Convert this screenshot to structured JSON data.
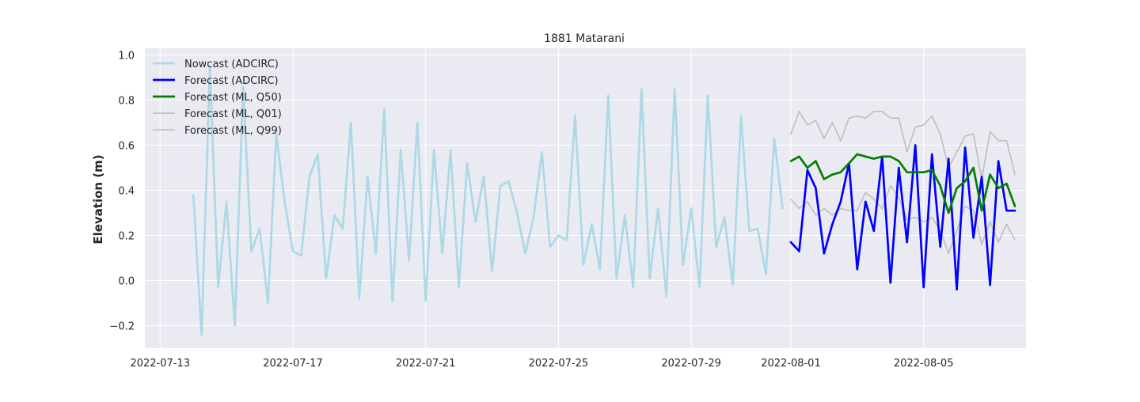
{
  "chart_data": {
    "type": "line",
    "title": "1881 Matarani",
    "xlabel": "",
    "ylabel": "Elevation (m)",
    "x_unit": "datetime",
    "xlim": [
      "2022-07-12T13:00",
      "2022-08-08T02:00"
    ],
    "ylim": [
      -0.3,
      1.03
    ],
    "yticks": [
      -0.2,
      0.0,
      0.2,
      0.4,
      0.6,
      0.8,
      1.0
    ],
    "ytick_labels": [
      "−0.2",
      "0.0",
      "0.2",
      "0.4",
      "0.6",
      "0.8",
      "1.0"
    ],
    "xticks": [
      "2022-07-13",
      "2022-07-17",
      "2022-07-21",
      "2022-07-25",
      "2022-07-29",
      "2022-08-01",
      "2022-08-05"
    ],
    "grid": true,
    "legend_position": "upper-left",
    "background": "#eaeaf2",
    "series": [
      {
        "name": "Nowcast (ADCIRC)",
        "color": "#add8e6",
        "line_width": "thick",
        "x": [
          "2022-07-14T00:00",
          "2022-07-14T06:00",
          "2022-07-14T12:00",
          "2022-07-14T18:00",
          "2022-07-15T00:00",
          "2022-07-15T06:00",
          "2022-07-15T12:00",
          "2022-07-15T18:00",
          "2022-07-16T00:00",
          "2022-07-16T06:00",
          "2022-07-16T12:00",
          "2022-07-16T18:00",
          "2022-07-17T00:00",
          "2022-07-17T06:00",
          "2022-07-17T12:00",
          "2022-07-17T18:00",
          "2022-07-18T00:00",
          "2022-07-18T06:00",
          "2022-07-18T12:00",
          "2022-07-18T18:00",
          "2022-07-19T00:00",
          "2022-07-19T06:00",
          "2022-07-19T12:00",
          "2022-07-19T18:00",
          "2022-07-20T00:00",
          "2022-07-20T06:00",
          "2022-07-20T12:00",
          "2022-07-20T18:00",
          "2022-07-21T00:00",
          "2022-07-21T06:00",
          "2022-07-21T12:00",
          "2022-07-21T18:00",
          "2022-07-22T00:00",
          "2022-07-22T06:00",
          "2022-07-22T12:00",
          "2022-07-22T18:00",
          "2022-07-23T00:00",
          "2022-07-23T06:00",
          "2022-07-23T12:00",
          "2022-07-23T18:00",
          "2022-07-24T00:00",
          "2022-07-24T06:00",
          "2022-07-24T12:00",
          "2022-07-24T18:00",
          "2022-07-25T00:00",
          "2022-07-25T06:00",
          "2022-07-25T12:00",
          "2022-07-25T18:00",
          "2022-07-26T00:00",
          "2022-07-26T06:00",
          "2022-07-26T12:00",
          "2022-07-26T18:00",
          "2022-07-27T00:00",
          "2022-07-27T06:00",
          "2022-07-27T12:00",
          "2022-07-27T18:00",
          "2022-07-28T00:00",
          "2022-07-28T06:00",
          "2022-07-28T12:00",
          "2022-07-28T18:00",
          "2022-07-29T00:00",
          "2022-07-29T06:00",
          "2022-07-29T12:00",
          "2022-07-29T18:00",
          "2022-07-30T00:00",
          "2022-07-30T06:00",
          "2022-07-30T12:00",
          "2022-07-30T18:00",
          "2022-07-31T00:00",
          "2022-07-31T06:00",
          "2022-07-31T12:00",
          "2022-07-31T18:00"
        ],
        "y": [
          0.38,
          -0.24,
          0.95,
          -0.03,
          0.35,
          -0.2,
          0.86,
          0.13,
          0.23,
          -0.1,
          0.65,
          0.35,
          0.13,
          0.11,
          0.46,
          0.56,
          0.01,
          0.29,
          0.23,
          0.7,
          -0.08,
          0.46,
          0.12,
          0.76,
          -0.09,
          0.58,
          0.09,
          0.7,
          -0.09,
          0.58,
          0.12,
          0.58,
          -0.03,
          0.52,
          0.26,
          0.46,
          0.04,
          0.42,
          0.44,
          0.3,
          0.12,
          0.28,
          0.57,
          0.15,
          0.2,
          0.18,
          0.73,
          0.07,
          0.25,
          0.05,
          0.82,
          0.01,
          0.29,
          -0.03,
          0.85,
          0.01,
          0.32,
          -0.07,
          0.85,
          0.07,
          0.32,
          -0.03,
          0.82,
          0.15,
          0.28,
          -0.02,
          0.73,
          0.22,
          0.23,
          0.03,
          0.63,
          0.32
        ]
      },
      {
        "name": "Forecast (ADCIRC)",
        "color": "#0000ff",
        "line_width": "thick",
        "x": [
          "2022-08-01T00:00",
          "2022-08-01T06:00",
          "2022-08-01T12:00",
          "2022-08-01T18:00",
          "2022-08-02T00:00",
          "2022-08-02T06:00",
          "2022-08-02T12:00",
          "2022-08-02T18:00",
          "2022-08-03T00:00",
          "2022-08-03T06:00",
          "2022-08-03T12:00",
          "2022-08-03T18:00",
          "2022-08-04T00:00",
          "2022-08-04T06:00",
          "2022-08-04T12:00",
          "2022-08-04T18:00",
          "2022-08-05T00:00",
          "2022-08-05T06:00",
          "2022-08-05T12:00",
          "2022-08-05T18:00",
          "2022-08-06T00:00",
          "2022-08-06T06:00",
          "2022-08-06T12:00",
          "2022-08-06T18:00",
          "2022-08-07T00:00",
          "2022-08-07T06:00",
          "2022-08-07T12:00",
          "2022-08-07T18:00"
        ],
        "y": [
          0.17,
          0.13,
          0.49,
          0.41,
          0.12,
          0.25,
          0.35,
          0.52,
          0.05,
          0.35,
          0.22,
          0.55,
          -0.01,
          0.5,
          0.17,
          0.6,
          -0.03,
          0.56,
          0.15,
          0.54,
          -0.04,
          0.59,
          0.19,
          0.46,
          -0.02,
          0.53,
          0.31,
          0.31
        ]
      },
      {
        "name": "Forecast (ML, Q50)",
        "color": "#008000",
        "line_width": "thick",
        "x": [
          "2022-08-01T00:00",
          "2022-08-01T06:00",
          "2022-08-01T12:00",
          "2022-08-01T18:00",
          "2022-08-02T00:00",
          "2022-08-02T06:00",
          "2022-08-02T12:00",
          "2022-08-02T18:00",
          "2022-08-03T00:00",
          "2022-08-03T06:00",
          "2022-08-03T12:00",
          "2022-08-03T18:00",
          "2022-08-04T00:00",
          "2022-08-04T06:00",
          "2022-08-04T12:00",
          "2022-08-04T18:00",
          "2022-08-05T00:00",
          "2022-08-05T06:00",
          "2022-08-05T12:00",
          "2022-08-05T18:00",
          "2022-08-06T00:00",
          "2022-08-06T06:00",
          "2022-08-06T12:00",
          "2022-08-06T18:00",
          "2022-08-07T00:00",
          "2022-08-07T06:00",
          "2022-08-07T12:00",
          "2022-08-07T18:00"
        ],
        "y": [
          0.53,
          0.55,
          0.5,
          0.53,
          0.45,
          0.47,
          0.48,
          0.52,
          0.56,
          0.55,
          0.54,
          0.55,
          0.55,
          0.53,
          0.48,
          0.48,
          0.48,
          0.49,
          0.42,
          0.3,
          0.41,
          0.44,
          0.5,
          0.31,
          0.47,
          0.41,
          0.43,
          0.33
        ]
      },
      {
        "name": "Forecast (ML, Q01)",
        "color": "#bbbbbb",
        "line_width": "thin",
        "x": [
          "2022-08-01T00:00",
          "2022-08-01T06:00",
          "2022-08-01T12:00",
          "2022-08-01T18:00",
          "2022-08-02T00:00",
          "2022-08-02T06:00",
          "2022-08-02T12:00",
          "2022-08-02T18:00",
          "2022-08-03T00:00",
          "2022-08-03T06:00",
          "2022-08-03T12:00",
          "2022-08-03T18:00",
          "2022-08-04T00:00",
          "2022-08-04T06:00",
          "2022-08-04T12:00",
          "2022-08-04T18:00",
          "2022-08-05T00:00",
          "2022-08-05T06:00",
          "2022-08-05T12:00",
          "2022-08-05T18:00",
          "2022-08-06T00:00",
          "2022-08-06T06:00",
          "2022-08-06T12:00",
          "2022-08-06T18:00",
          "2022-08-07T00:00",
          "2022-08-07T06:00",
          "2022-08-07T12:00",
          "2022-08-07T18:00"
        ],
        "y": [
          0.36,
          0.32,
          0.35,
          0.29,
          0.32,
          0.29,
          0.32,
          0.31,
          0.31,
          0.39,
          0.36,
          0.32,
          0.42,
          0.37,
          0.27,
          0.28,
          0.26,
          0.28,
          0.22,
          0.12,
          0.22,
          0.33,
          0.31,
          0.16,
          0.26,
          0.17,
          0.25,
          0.18
        ]
      },
      {
        "name": "Forecast (ML, Q99)",
        "color": "#bbbbbb",
        "line_width": "thin",
        "x": [
          "2022-08-01T00:00",
          "2022-08-01T06:00",
          "2022-08-01T12:00",
          "2022-08-01T18:00",
          "2022-08-02T00:00",
          "2022-08-02T06:00",
          "2022-08-02T12:00",
          "2022-08-02T18:00",
          "2022-08-03T00:00",
          "2022-08-03T06:00",
          "2022-08-03T12:00",
          "2022-08-03T18:00",
          "2022-08-04T00:00",
          "2022-08-04T06:00",
          "2022-08-04T12:00",
          "2022-08-04T18:00",
          "2022-08-05T00:00",
          "2022-08-05T06:00",
          "2022-08-05T12:00",
          "2022-08-05T18:00",
          "2022-08-06T00:00",
          "2022-08-06T06:00",
          "2022-08-06T12:00",
          "2022-08-06T18:00",
          "2022-08-07T00:00",
          "2022-08-07T06:00",
          "2022-08-07T12:00",
          "2022-08-07T18:00"
        ],
        "y": [
          0.65,
          0.75,
          0.69,
          0.71,
          0.63,
          0.7,
          0.62,
          0.72,
          0.73,
          0.72,
          0.75,
          0.75,
          0.72,
          0.72,
          0.57,
          0.68,
          0.69,
          0.73,
          0.65,
          0.5,
          0.57,
          0.64,
          0.65,
          0.45,
          0.66,
          0.62,
          0.62,
          0.47
        ]
      }
    ]
  }
}
